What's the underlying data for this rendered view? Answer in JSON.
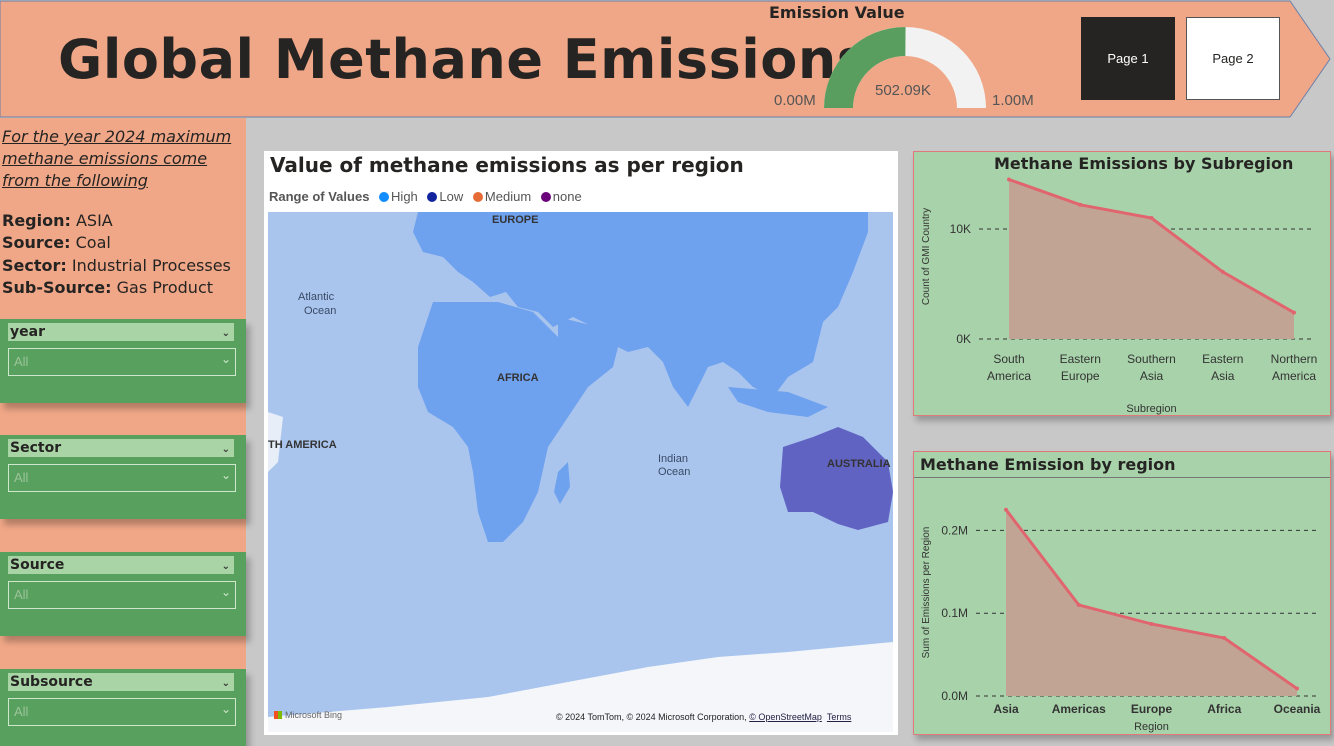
{
  "header": {
    "title": "Global Methane Emissions",
    "gauge": {
      "title": "Emission Value",
      "value": 502090,
      "value_label": "502.09K",
      "min": 0,
      "max": 1000000,
      "min_label": "0.00M",
      "max_label": "1.00M",
      "fill_color": "#5a9e5f",
      "track_color": "#f2f2f2"
    },
    "pages": [
      {
        "label": "Page 1",
        "active": true
      },
      {
        "label": "Page 2",
        "active": false
      }
    ],
    "banner_color": "#f0a787"
  },
  "summary": {
    "heading": "For the year 2024 maximum methane emissions come from the following",
    "items": [
      {
        "key": "Region:",
        "value": "ASIA"
      },
      {
        "key": "Source:",
        "value": "Coal"
      },
      {
        "key": "Sector:",
        "value": "Industrial Processes"
      },
      {
        "key": "Sub-Source:",
        "value": "Gas Product"
      }
    ]
  },
  "slicers": [
    {
      "title": "year",
      "value": "All"
    },
    {
      "title": "Sector",
      "value": "All"
    },
    {
      "title": "Source",
      "value": "All"
    },
    {
      "title": "Subsource",
      "value": "All"
    }
  ],
  "map": {
    "title": "Value of methane emissions as per region",
    "legend_title": "Range of Values",
    "legend": [
      {
        "label": "High",
        "color": "#118dff"
      },
      {
        "label": "Low",
        "color": "#12239e"
      },
      {
        "label": "Medium",
        "color": "#e66c37"
      },
      {
        "label": "none",
        "color": "#6b007b"
      }
    ],
    "labels": {
      "europe": "EUROPE",
      "africa": "AFRICA",
      "australia": "AUSTRALIA",
      "south_america": "TH AMERICA",
      "atlantic": "Atlantic",
      "atlantic2": "Ocean",
      "indian": "Indian",
      "indian2": "Ocean"
    },
    "bing": "Microsoft Bing",
    "copyright": "© 2024 TomTom, © 2024 Microsoft Corporation,",
    "osm": "© OpenStreetMap",
    "terms": "Terms"
  },
  "chart_data": [
    {
      "type": "area",
      "title": "Methane Emissions by Subregion",
      "xlabel": "Subregion",
      "ylabel": "Count of GMI Country",
      "categories": [
        "South America",
        "Eastern Europe",
        "Southern Asia",
        "Eastern Asia",
        "Northern America"
      ],
      "values": [
        14500,
        12200,
        11000,
        6100,
        2400
      ],
      "ylim": [
        0,
        15000
      ],
      "yticks": [
        {
          "value": 0,
          "label": "0K"
        },
        {
          "value": 10000,
          "label": "10K"
        }
      ],
      "grid": true,
      "line_color": "#e0656e",
      "fill_color": "#c2a494"
    },
    {
      "type": "area",
      "title": "Methane Emission by region",
      "xlabel": "Region",
      "ylabel": "Sum of Emissions per Region",
      "categories": [
        "Asia",
        "Americas",
        "Europe",
        "Africa",
        "Oceania"
      ],
      "values": [
        225000,
        110000,
        87000,
        70000,
        9000
      ],
      "ylim": [
        0,
        0.25
      ],
      "yticks": [
        {
          "value": 0,
          "label": "0.0M"
        },
        {
          "value": 100000,
          "label": "0.1M"
        },
        {
          "value": 200000,
          "label": "0.2M"
        }
      ],
      "grid": true,
      "line_color": "#e0656e",
      "fill_color": "#c2a494"
    }
  ]
}
